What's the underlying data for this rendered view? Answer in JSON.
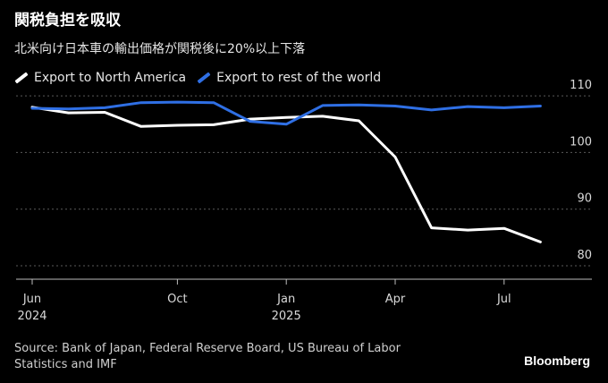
{
  "title": "関税負担を吸収",
  "subtitle": "北米向け日本車の輸出価格が関税後に20%以上下落",
  "source": "Source: Bank of Japan, Federal Reserve Board, US Bureau of Labor Statistics and IMF",
  "brand": "Bloomberg",
  "colors": {
    "north_america": "#ffffff",
    "rest_of_world": "#2f6fe4",
    "grid": "#5a5a5a",
    "background": "#000000"
  },
  "chart_data": {
    "type": "line",
    "title": "関税負担を吸収",
    "xlabel": "",
    "ylabel": "",
    "ylim": [
      78,
      112
    ],
    "yticks": [
      80,
      90,
      100,
      110
    ],
    "grid": true,
    "legend_position": "top-left",
    "x_index_range": [
      0,
      15
    ],
    "xticks": [
      {
        "index": 0,
        "label": "Jun",
        "sublabel": "2024"
      },
      {
        "index": 4,
        "label": "Oct",
        "sublabel": ""
      },
      {
        "index": 7,
        "label": "Jan",
        "sublabel": "2025"
      },
      {
        "index": 10,
        "label": "Apr",
        "sublabel": ""
      },
      {
        "index": 13,
        "label": "Jul",
        "sublabel": ""
      }
    ],
    "x": [
      "2024-06",
      "2024-07",
      "2024-08",
      "2024-09",
      "2024-10",
      "2024-11",
      "2024-12",
      "2025-01",
      "2025-02",
      "2025-03",
      "2025-04",
      "2025-05",
      "2025-06",
      "2025-07",
      "2025-08"
    ],
    "series": [
      {
        "name": "Export to North America",
        "color": "#ffffff",
        "values": [
          108.0,
          107.0,
          107.1,
          104.6,
          104.8,
          104.9,
          105.9,
          106.2,
          106.4,
          105.6,
          99.2,
          86.7,
          86.3,
          86.6,
          84.2
        ]
      },
      {
        "name": "Export to rest of the world",
        "color": "#2f6fe4",
        "values": [
          107.8,
          107.7,
          107.9,
          108.8,
          108.9,
          108.8,
          105.5,
          105.0,
          108.3,
          108.4,
          108.2,
          107.5,
          108.1,
          107.9,
          108.2
        ]
      }
    ]
  }
}
